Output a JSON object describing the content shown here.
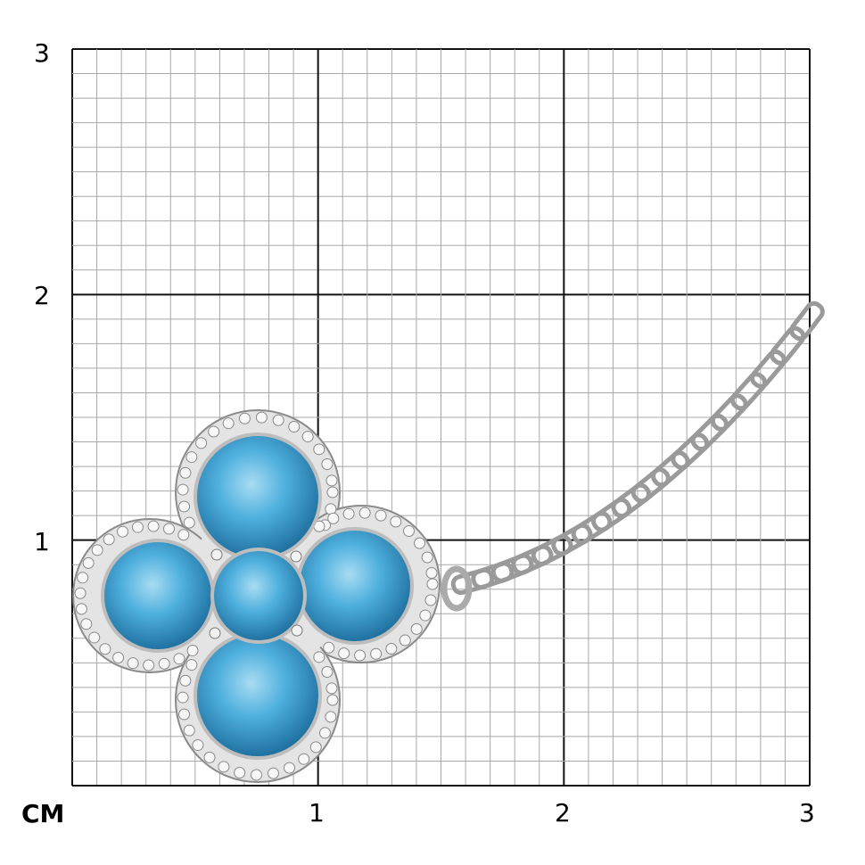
{
  "scale": {
    "unit_label": "CM",
    "x_ticks": [
      "1",
      "2",
      "3"
    ],
    "y_ticks": [
      "3",
      "2",
      "1"
    ],
    "range_cm": [
      0,
      3
    ],
    "minor_divisions_per_cm": 10
  },
  "product": {
    "subject": "blue-topaz-clover-pendant-with-diamond-halo-on-chain",
    "stone_color": "#3a9fd0",
    "metal_color": "#c8c8c8"
  }
}
